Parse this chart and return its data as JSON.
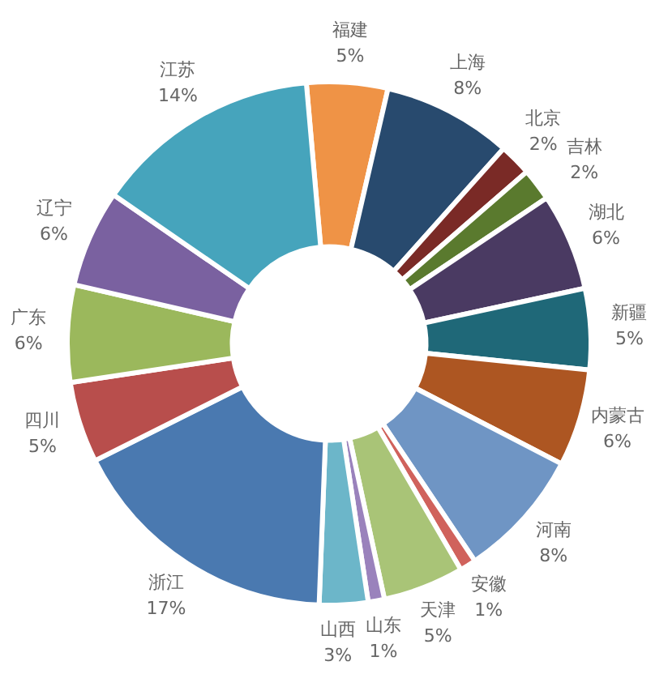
{
  "chart_data": {
    "type": "donut",
    "categories": [
      "福建",
      "上海",
      "北京",
      "吉林",
      "湖北",
      "新疆",
      "内蒙古",
      "河南",
      "安徽",
      "天津",
      "山东",
      "山西",
      "浙江",
      "四川",
      "广东",
      "辽宁",
      "江苏"
    ],
    "values": [
      5,
      8,
      2,
      2,
      6,
      5,
      6,
      8,
      1,
      5,
      1,
      3,
      17,
      5,
      6,
      6,
      14
    ],
    "value_labels": [
      "5%",
      "8%",
      "2%",
      "2%",
      "6%",
      "5%",
      "6%",
      "8%",
      "1%",
      "5%",
      "1%",
      "3%",
      "17%",
      "5%",
      "6%",
      "6%",
      "14%"
    ],
    "colors": [
      "#ef9346",
      "#284a6e",
      "#7a2a26",
      "#5a7a2e",
      "#4a3a62",
      "#1f6878",
      "#ad5622",
      "#6f95c4",
      "#d0625c",
      "#a9c477",
      "#9a82bc",
      "#6cb6c9",
      "#4a79b0",
      "#b84e4c",
      "#9bb85c",
      "#7a61a0",
      "#46a4bc"
    ],
    "legend": false
  }
}
